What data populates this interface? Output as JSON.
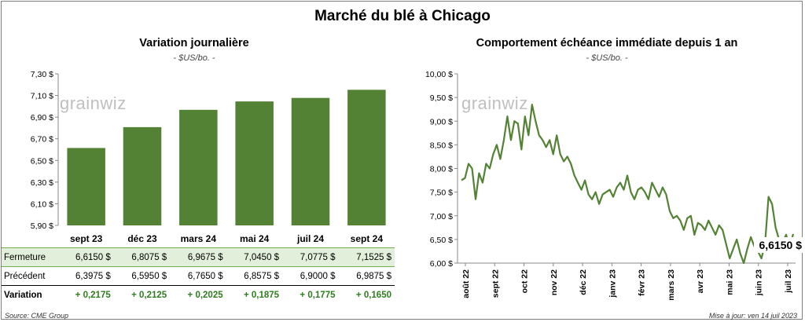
{
  "main_title": "Marché du blé à Chicago",
  "left_panel": {
    "title": "Variation  journalière",
    "subtitle": "- $US/bo. -",
    "watermark": "grainwiz"
  },
  "right_panel": {
    "title": "Comportement  échéance immédiate depuis 1 an",
    "subtitle": "- $US/bo. -",
    "watermark": "grainwiz",
    "last_value_label": "6,6150 $"
  },
  "table": {
    "rows": [
      {
        "label": "Fermeture",
        "values": [
          "6,6150  $",
          "6,8075  $",
          "6,9675  $",
          "7,0450  $",
          "7,0775  $",
          "7,1525  $"
        ]
      },
      {
        "label": "Précédent",
        "values": [
          "6,3975  $",
          "6,5950  $",
          "6,7650  $",
          "6,8575  $",
          "6,9000  $",
          "6,9875  $"
        ]
      },
      {
        "label": "Variation",
        "values": [
          "+ 0,2175",
          "+ 0,2125",
          "+ 0,2025",
          "+ 0,1875",
          "+ 0,1775",
          "+ 0,1650"
        ]
      }
    ]
  },
  "footer": {
    "source": "Source: CME Group",
    "updated": "Mise à jour: ven 14 juil 2023"
  },
  "colors": {
    "bar": "#548235",
    "line": "#548235",
    "close_row_bg": "#e2efda",
    "positive": "#2e7d1f"
  },
  "chart_data": [
    {
      "type": "bar",
      "title": "Variation  journalière",
      "subtitle": "- $US/bo. -",
      "categories": [
        "sept 23",
        "déc 23",
        "mars 24",
        "mai 24",
        "juil 24",
        "sept 24"
      ],
      "values": [
        6.615,
        6.8075,
        6.9675,
        7.045,
        7.0775,
        7.1525
      ],
      "ylim": [
        5.9,
        7.3
      ],
      "yticks": [
        "5,90 $",
        "6,10 $",
        "6,30 $",
        "6,50 $",
        "6,70 $",
        "6,90 $",
        "7,10 $",
        "7,30 $"
      ],
      "grid": false,
      "legend": "none"
    },
    {
      "type": "line",
      "title": "Comportement  échéance immédiate depuis 1 an",
      "subtitle": "- $US/bo. -",
      "ylim": [
        6.0,
        10.0
      ],
      "yticks": [
        "6,00 $",
        "6,50 $",
        "7,00 $",
        "7,50 $",
        "8,00 $",
        "8,50 $",
        "9,00 $",
        "9,50 $",
        "10,00 $"
      ],
      "xlabels": [
        "août 22",
        "sept 22",
        "oct 22",
        "nov 22",
        "déc 22",
        "janv 23",
        "févr 23",
        "mars 23",
        "avr 23",
        "mai 23",
        "juin 23",
        "juil 23"
      ],
      "values": [
        7.75,
        7.8,
        8.1,
        8.0,
        7.35,
        7.9,
        7.7,
        8.1,
        8.0,
        8.3,
        8.5,
        8.2,
        8.6,
        9.1,
        8.6,
        9.0,
        8.95,
        8.4,
        9.1,
        8.7,
        9.35,
        9.0,
        8.7,
        8.6,
        8.45,
        8.6,
        8.3,
        8.7,
        8.3,
        8.15,
        8.25,
        8.1,
        7.85,
        7.7,
        7.55,
        7.75,
        7.45,
        7.35,
        7.5,
        7.25,
        7.45,
        7.5,
        7.55,
        7.4,
        7.6,
        7.7,
        7.55,
        7.85,
        7.5,
        7.35,
        7.55,
        7.6,
        7.5,
        7.35,
        7.7,
        7.55,
        7.4,
        7.6,
        7.45,
        7.1,
        6.95,
        7.0,
        6.9,
        6.7,
        6.95,
        7.0,
        6.6,
        6.85,
        6.8,
        6.7,
        6.9,
        6.75,
        6.6,
        6.8,
        6.7,
        6.4,
        6.1,
        6.3,
        6.5,
        6.2,
        6.0,
        6.3,
        6.55,
        6.35,
        6.25,
        6.1,
        6.4,
        7.4,
        7.25,
        6.75,
        6.5,
        6.45,
        6.6,
        6.35,
        6.615
      ],
      "grid": false,
      "legend": "none"
    }
  ]
}
